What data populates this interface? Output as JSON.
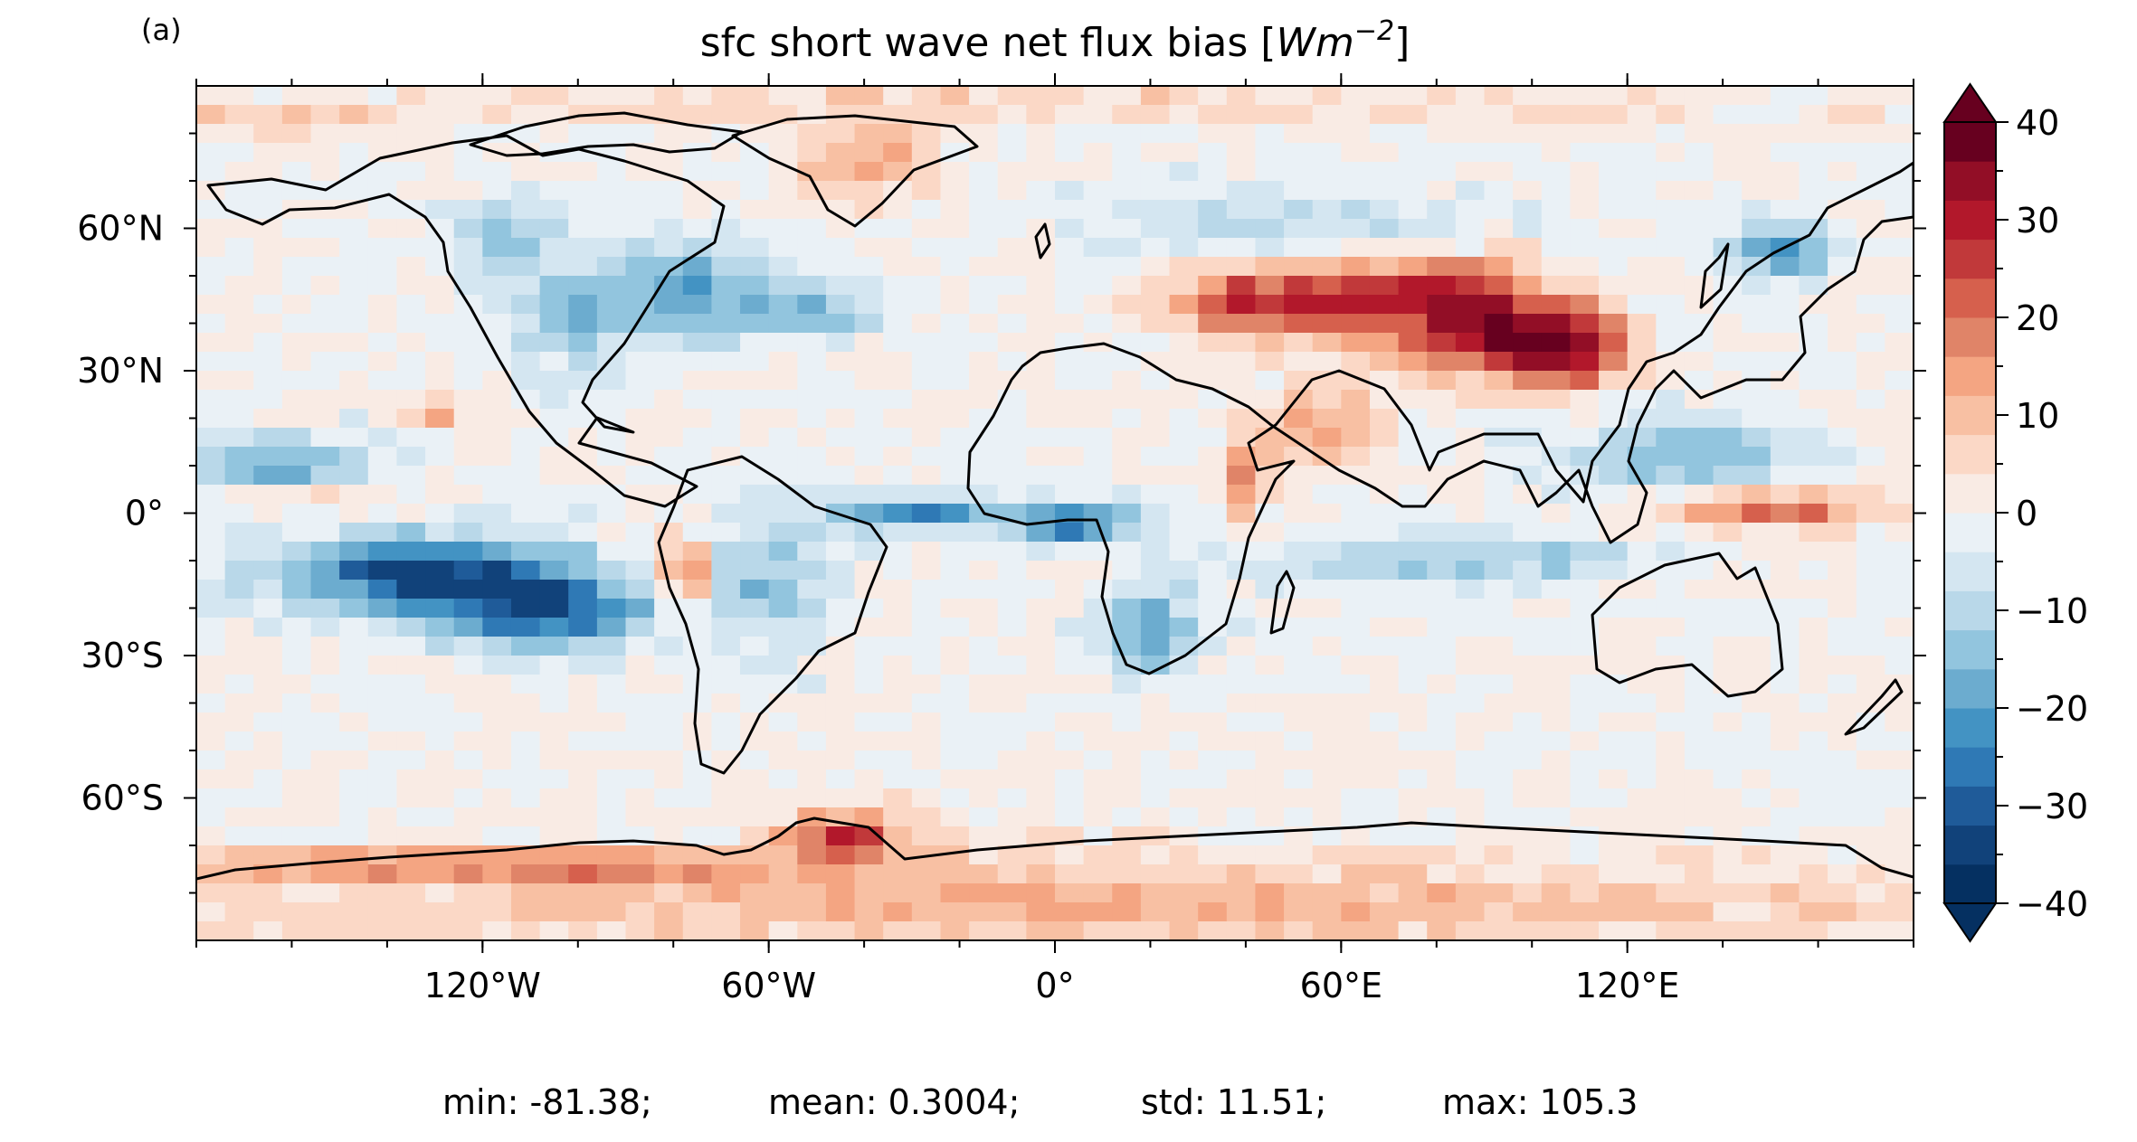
{
  "panel_label": "(a)",
  "title": {
    "main": "sfc short wave net flux bias [",
    "unit_base": "Wm",
    "unit_exp": "−2",
    "close": "]"
  },
  "colors": {
    "scale": [
      "#053061",
      "#11427a",
      "#1f5b99",
      "#2f79b5",
      "#4393c3",
      "#6caccf",
      "#92c5de",
      "#b9d8e9",
      "#d4e6f1",
      "#eaf1f6",
      "#f9ebe4",
      "#fbd8c6",
      "#f8c0a3",
      "#f4a582",
      "#e08468",
      "#d6604d",
      "#c1393a",
      "#b2182b",
      "#920e26",
      "#67001f"
    ]
  },
  "chart_data": {
    "type": "heatmap",
    "title": "sfc short wave net flux bias [Wm−2]",
    "projection": "plate-carree",
    "xlim": [
      -180,
      180
    ],
    "ylim": [
      -90,
      90
    ],
    "x_ticks": [
      {
        "value": -120,
        "label": "120°W"
      },
      {
        "value": -60,
        "label": "60°W"
      },
      {
        "value": 0,
        "label": "0°"
      },
      {
        "value": 60,
        "label": "60°E"
      },
      {
        "value": 120,
        "label": "120°E"
      }
    ],
    "y_ticks": [
      {
        "value": 60,
        "label": "60°N"
      },
      {
        "value": 30,
        "label": "30°N"
      },
      {
        "value": 0,
        "label": "0°"
      },
      {
        "value": -30,
        "label": "30°S"
      },
      {
        "value": -60,
        "label": "60°S"
      }
    ],
    "colorbar": {
      "min": -40,
      "max": 40,
      "step": 5,
      "extend": "both",
      "ticks": [
        {
          "value": 40,
          "label": "40"
        },
        {
          "value": 30,
          "label": "30"
        },
        {
          "value": 20,
          "label": "20"
        },
        {
          "value": 10,
          "label": "10"
        },
        {
          "value": 0,
          "label": "0"
        },
        {
          "value": -10,
          "label": "−10"
        },
        {
          "value": -20,
          "label": "−20"
        },
        {
          "value": -30,
          "label": "−30"
        },
        {
          "value": -40,
          "label": "−40"
        }
      ]
    },
    "regions": [
      {
        "lon": -130,
        "lat": -13,
        "rx": 32,
        "ry": 8,
        "value": -35
      },
      {
        "lon": -105,
        "lat": -22,
        "rx": 22,
        "ry": 7,
        "value": -25
      },
      {
        "lon": -165,
        "lat": 10,
        "rx": 22,
        "ry": 6,
        "value": -18
      },
      {
        "lon": -30,
        "lat": 0,
        "rx": 20,
        "ry": 4,
        "value": -22
      },
      {
        "lon": 5,
        "lat": -2,
        "rx": 15,
        "ry": 4,
        "value": -28
      },
      {
        "lon": 85,
        "lat": -10,
        "rx": 40,
        "ry": 5,
        "value": -14
      },
      {
        "lon": 130,
        "lat": 12,
        "rx": 25,
        "ry": 8,
        "value": -16
      },
      {
        "lon": 152,
        "lat": 55,
        "rx": 10,
        "ry": 6,
        "value": -22
      },
      {
        "lon": -75,
        "lat": 47,
        "rx": 16,
        "ry": 10,
        "value": -20
      },
      {
        "lon": -100,
        "lat": 42,
        "rx": 14,
        "ry": 12,
        "value": -15
      },
      {
        "lon": -50,
        "lat": 42,
        "rx": 12,
        "ry": 5,
        "value": -18
      },
      {
        "lon": -115,
        "lat": 58,
        "rx": 12,
        "ry": 6,
        "value": -16
      },
      {
        "lon": -60,
        "lat": -15,
        "rx": 12,
        "ry": 15,
        "value": -14
      },
      {
        "lon": 20,
        "lat": -25,
        "rx": 10,
        "ry": 10,
        "value": -20
      },
      {
        "lon": 45,
        "lat": 60,
        "rx": 40,
        "ry": 10,
        "value": -8
      },
      {
        "lon": 40,
        "lat": 45,
        "rx": 15,
        "ry": 7,
        "value": 28
      },
      {
        "lon": 60,
        "lat": 44,
        "rx": 12,
        "ry": 7,
        "value": 20
      },
      {
        "lon": 92,
        "lat": 38,
        "rx": 20,
        "ry": 9,
        "value": 35
      },
      {
        "lon": 78,
        "lat": 48,
        "rx": 18,
        "ry": 7,
        "value": 22
      },
      {
        "lon": 108,
        "lat": 34,
        "rx": 10,
        "ry": 8,
        "value": 26
      },
      {
        "lon": 55,
        "lat": 18,
        "rx": 12,
        "ry": 8,
        "value": 14
      },
      {
        "lon": 40,
        "lat": 8,
        "rx": 6,
        "ry": 8,
        "value": 16
      },
      {
        "lon": -44,
        "lat": -68,
        "rx": 14,
        "ry": 5,
        "value": 26
      },
      {
        "lon": -115,
        "lat": -74,
        "rx": 65,
        "ry": 3,
        "value": 20
      },
      {
        "lon": 150,
        "lat": 1,
        "rx": 25,
        "ry": 4,
        "value": 22
      },
      {
        "lon": -130,
        "lat": 21,
        "rx": 7,
        "ry": 4,
        "value": 15
      },
      {
        "lon": -78,
        "lat": -13,
        "rx": 4,
        "ry": 8,
        "value": 26
      },
      {
        "lon": -165,
        "lat": 3,
        "rx": 18,
        "ry": 3,
        "value": 12
      },
      {
        "lon": -160,
        "lat": 82,
        "rx": 20,
        "ry": 3,
        "value": 10
      },
      {
        "lon": -40,
        "lat": 74,
        "rx": 17,
        "ry": 9,
        "value": 12
      },
      {
        "lon": 0,
        "lat": -82,
        "rx": 180,
        "ry": 9,
        "value": 12
      },
      {
        "lon": 0,
        "lat": 86,
        "rx": 180,
        "ry": 4,
        "value": 6
      }
    ]
  },
  "stats": {
    "min": "min: -81.38;",
    "mean": "mean: 0.3004;",
    "std": "std: 11.51;",
    "max": "max: 105.3"
  }
}
